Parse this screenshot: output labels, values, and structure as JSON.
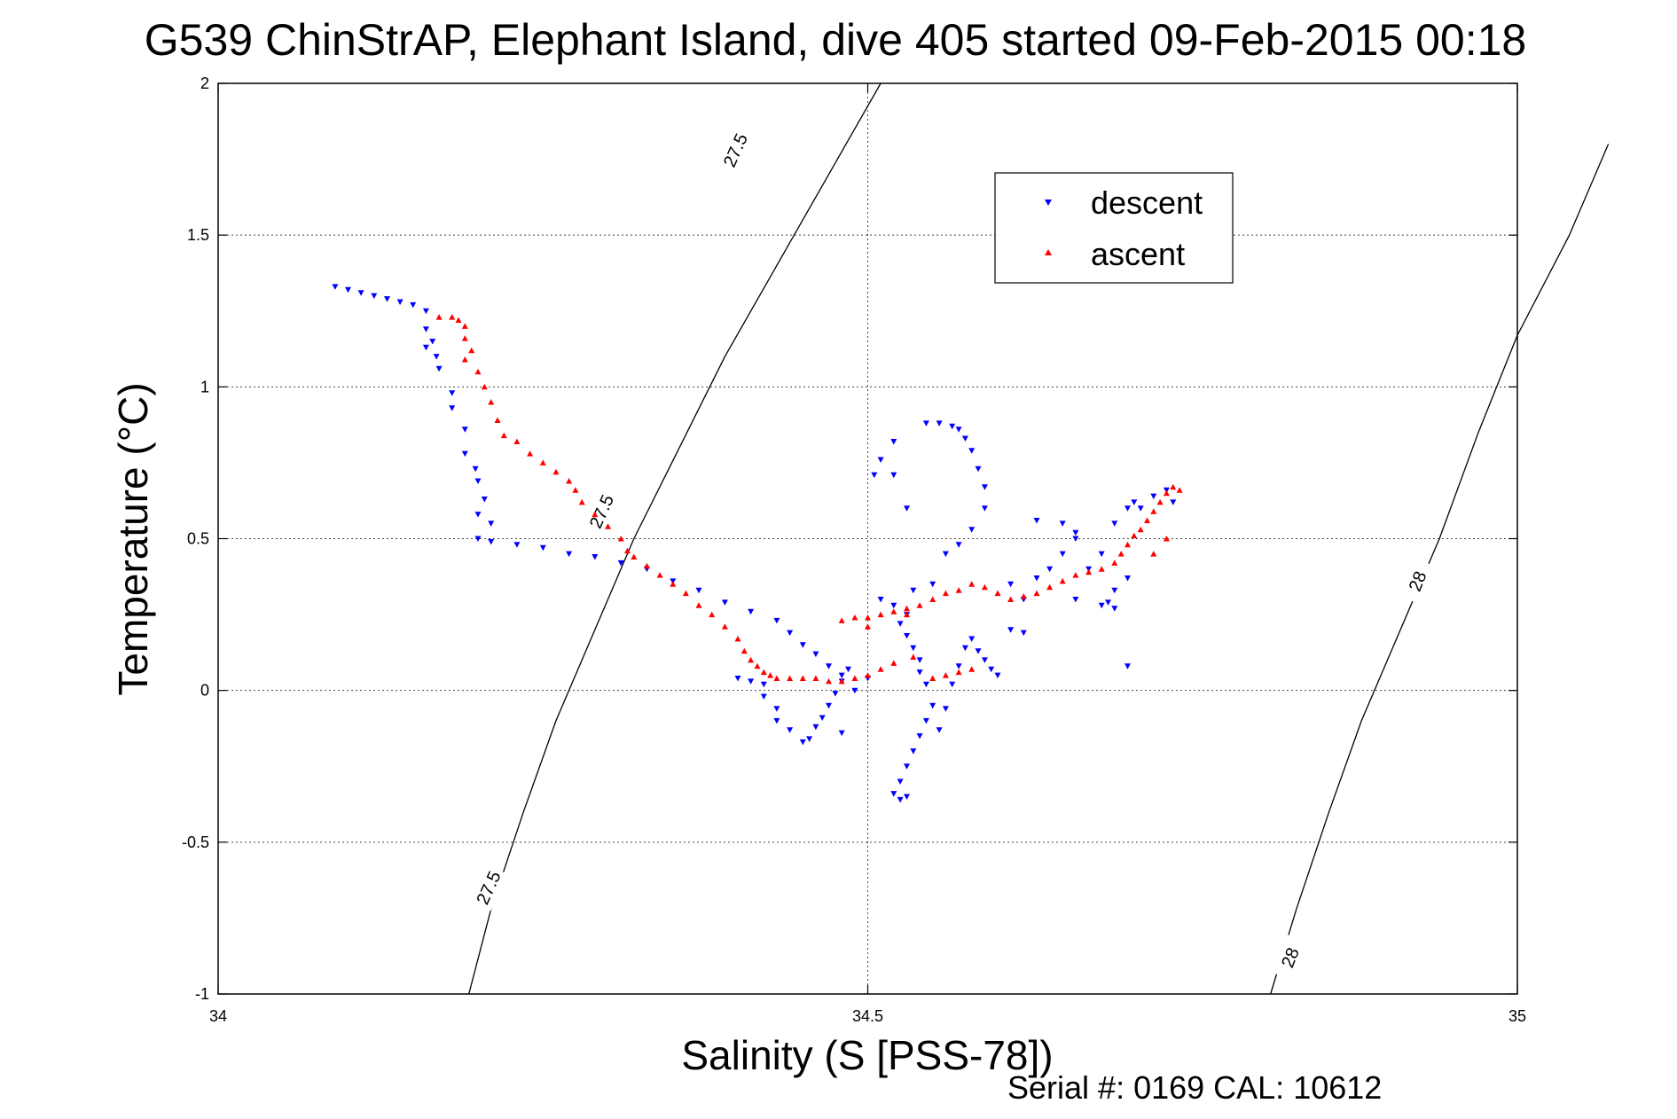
{
  "chart_data": {
    "type": "scatter",
    "title": "G539 ChinStrAP, Elephant Island, dive 405 started 09-Feb-2015 00:18",
    "xlabel": "Salinity (S [PSS-78])",
    "ylabel": "Temperature (°C)",
    "xlim": [
      34,
      35
    ],
    "ylim": [
      -1,
      2
    ],
    "xticks": [
      "34",
      "34.5",
      "35"
    ],
    "yticks": [
      "-1",
      "-0.5",
      "0",
      "0.5",
      "1",
      "1.5",
      "2"
    ],
    "grid": true,
    "legend_position": "top-right",
    "footer": "Serial #: 0169 CAL: 10612",
    "contours": [
      {
        "label": "27.5",
        "points": [
          [
            34.193,
            -1.0
          ],
          [
            34.21,
            -0.72
          ],
          [
            34.235,
            -0.4
          ],
          [
            34.26,
            -0.1
          ],
          [
            34.29,
            0.2
          ],
          [
            34.32,
            0.5
          ],
          [
            34.355,
            0.8
          ],
          [
            34.39,
            1.1
          ],
          [
            34.43,
            1.4
          ],
          [
            34.47,
            1.7
          ],
          [
            34.51,
            2.0
          ]
        ],
        "label_positions": [
          [
            34.208,
            -0.65
          ],
          [
            34.295,
            0.59
          ],
          [
            34.398,
            1.78
          ]
        ]
      },
      {
        "label": "28",
        "points": [
          [
            34.81,
            -1.0
          ],
          [
            34.83,
            -0.72
          ],
          [
            34.855,
            -0.4
          ],
          [
            34.88,
            -0.1
          ],
          [
            34.91,
            0.2
          ],
          [
            34.94,
            0.5
          ],
          [
            34.97,
            0.85
          ],
          [
            35.0,
            1.17
          ],
          [
            35.04,
            1.5
          ],
          [
            35.07,
            1.8
          ]
        ],
        "label_positions": [
          [
            34.825,
            -0.88
          ],
          [
            34.923,
            0.36
          ]
        ]
      }
    ],
    "series": [
      {
        "name": "descent",
        "color": "#0000ff",
        "marker": "triangle-down",
        "points": [
          [
            34.09,
            1.33
          ],
          [
            34.1,
            1.32
          ],
          [
            34.11,
            1.31
          ],
          [
            34.12,
            1.3
          ],
          [
            34.13,
            1.29
          ],
          [
            34.14,
            1.28
          ],
          [
            34.15,
            1.27
          ],
          [
            34.16,
            1.25
          ],
          [
            34.16,
            1.19
          ],
          [
            34.165,
            1.15
          ],
          [
            34.16,
            1.13
          ],
          [
            34.168,
            1.1
          ],
          [
            34.17,
            1.06
          ],
          [
            34.18,
            0.98
          ],
          [
            34.18,
            0.93
          ],
          [
            34.19,
            0.86
          ],
          [
            34.19,
            0.78
          ],
          [
            34.198,
            0.73
          ],
          [
            34.2,
            0.69
          ],
          [
            34.205,
            0.63
          ],
          [
            34.2,
            0.58
          ],
          [
            34.21,
            0.55
          ],
          [
            34.2,
            0.5
          ],
          [
            34.21,
            0.49
          ],
          [
            34.23,
            0.48
          ],
          [
            34.25,
            0.47
          ],
          [
            34.27,
            0.45
          ],
          [
            34.29,
            0.44
          ],
          [
            34.31,
            0.42
          ],
          [
            34.33,
            0.4
          ],
          [
            34.35,
            0.36
          ],
          [
            34.37,
            0.33
          ],
          [
            34.39,
            0.29
          ],
          [
            34.41,
            0.26
          ],
          [
            34.43,
            0.23
          ],
          [
            34.44,
            0.19
          ],
          [
            34.45,
            0.15
          ],
          [
            34.46,
            0.12
          ],
          [
            34.47,
            0.08
          ],
          [
            34.48,
            0.05
          ],
          [
            34.4,
            0.04
          ],
          [
            34.41,
            0.03
          ],
          [
            34.42,
            0.02
          ],
          [
            34.42,
            -0.02
          ],
          [
            34.43,
            -0.06
          ],
          [
            34.43,
            -0.1
          ],
          [
            34.44,
            -0.13
          ],
          [
            34.45,
            -0.17
          ],
          [
            34.455,
            -0.16
          ],
          [
            34.46,
            -0.12
          ],
          [
            34.465,
            -0.09
          ],
          [
            34.47,
            -0.05
          ],
          [
            34.475,
            -0.01
          ],
          [
            34.48,
            0.03
          ],
          [
            34.485,
            0.07
          ],
          [
            34.48,
            -0.14
          ],
          [
            34.49,
            0.0
          ],
          [
            34.5,
            0.04
          ],
          [
            34.51,
            0.3
          ],
          [
            34.52,
            0.28
          ],
          [
            34.53,
            0.25
          ],
          [
            34.525,
            0.22
          ],
          [
            34.53,
            0.18
          ],
          [
            34.535,
            0.14
          ],
          [
            34.54,
            0.1
          ],
          [
            34.54,
            0.06
          ],
          [
            34.545,
            0.02
          ],
          [
            34.55,
            -0.05
          ],
          [
            34.545,
            -0.1
          ],
          [
            34.54,
            -0.15
          ],
          [
            34.535,
            -0.2
          ],
          [
            34.53,
            -0.25
          ],
          [
            34.525,
            -0.3
          ],
          [
            34.52,
            -0.34
          ],
          [
            34.525,
            -0.36
          ],
          [
            34.53,
            -0.35
          ],
          [
            34.555,
            -0.13
          ],
          [
            34.56,
            -0.06
          ],
          [
            34.565,
            0.02
          ],
          [
            34.57,
            0.08
          ],
          [
            34.575,
            0.14
          ],
          [
            34.58,
            0.17
          ],
          [
            34.585,
            0.13
          ],
          [
            34.59,
            0.1
          ],
          [
            34.595,
            0.07
          ],
          [
            34.6,
            0.05
          ],
          [
            34.61,
            0.2
          ],
          [
            34.62,
            0.3
          ],
          [
            34.63,
            0.37
          ],
          [
            34.64,
            0.4
          ],
          [
            34.65,
            0.45
          ],
          [
            34.66,
            0.52
          ],
          [
            34.66,
            0.3
          ],
          [
            34.67,
            0.4
          ],
          [
            34.68,
            0.45
          ],
          [
            34.69,
            0.55
          ],
          [
            34.69,
            0.33
          ],
          [
            34.7,
            0.6
          ],
          [
            34.705,
            0.62
          ],
          [
            34.71,
            0.6
          ],
          [
            34.72,
            0.64
          ],
          [
            34.73,
            0.66
          ],
          [
            34.735,
            0.62
          ],
          [
            34.7,
            0.37
          ],
          [
            34.69,
            0.27
          ],
          [
            34.685,
            0.29
          ],
          [
            34.68,
            0.28
          ],
          [
            34.66,
            0.5
          ],
          [
            34.65,
            0.55
          ],
          [
            34.63,
            0.56
          ],
          [
            34.61,
            0.35
          ],
          [
            34.55,
            0.35
          ],
          [
            34.535,
            0.33
          ],
          [
            34.545,
            0.88
          ],
          [
            34.555,
            0.88
          ],
          [
            34.565,
            0.87
          ],
          [
            34.57,
            0.86
          ],
          [
            34.575,
            0.83
          ],
          [
            34.58,
            0.79
          ],
          [
            34.585,
            0.73
          ],
          [
            34.59,
            0.67
          ],
          [
            34.59,
            0.6
          ],
          [
            34.58,
            0.53
          ],
          [
            34.57,
            0.48
          ],
          [
            34.56,
            0.45
          ],
          [
            34.52,
            0.82
          ],
          [
            34.51,
            0.76
          ],
          [
            34.505,
            0.71
          ],
          [
            34.52,
            0.71
          ],
          [
            34.53,
            0.6
          ],
          [
            34.62,
            0.19
          ],
          [
            34.7,
            0.08
          ]
        ]
      },
      {
        "name": "ascent",
        "color": "#ff0000",
        "marker": "triangle-up",
        "points": [
          [
            34.17,
            1.23
          ],
          [
            34.18,
            1.23
          ],
          [
            34.185,
            1.22
          ],
          [
            34.19,
            1.2
          ],
          [
            34.19,
            1.16
          ],
          [
            34.195,
            1.12
          ],
          [
            34.19,
            1.09
          ],
          [
            34.2,
            1.05
          ],
          [
            34.205,
            1.0
          ],
          [
            34.21,
            0.95
          ],
          [
            34.215,
            0.89
          ],
          [
            34.22,
            0.84
          ],
          [
            34.23,
            0.82
          ],
          [
            34.24,
            0.78
          ],
          [
            34.25,
            0.75
          ],
          [
            34.26,
            0.72
          ],
          [
            34.27,
            0.69
          ],
          [
            34.275,
            0.66
          ],
          [
            34.28,
            0.62
          ],
          [
            34.29,
            0.58
          ],
          [
            34.3,
            0.54
          ],
          [
            34.31,
            0.5
          ],
          [
            34.315,
            0.46
          ],
          [
            34.32,
            0.44
          ],
          [
            34.33,
            0.41
          ],
          [
            34.34,
            0.38
          ],
          [
            34.35,
            0.35
          ],
          [
            34.36,
            0.32
          ],
          [
            34.37,
            0.28
          ],
          [
            34.38,
            0.25
          ],
          [
            34.39,
            0.21
          ],
          [
            34.4,
            0.17
          ],
          [
            34.405,
            0.13
          ],
          [
            34.41,
            0.1
          ],
          [
            34.415,
            0.08
          ],
          [
            34.42,
            0.06
          ],
          [
            34.425,
            0.05
          ],
          [
            34.43,
            0.04
          ],
          [
            34.44,
            0.04
          ],
          [
            34.45,
            0.04
          ],
          [
            34.46,
            0.04
          ],
          [
            34.47,
            0.03
          ],
          [
            34.48,
            0.03
          ],
          [
            34.49,
            0.04
          ],
          [
            34.5,
            0.05
          ],
          [
            34.51,
            0.07
          ],
          [
            34.52,
            0.09
          ],
          [
            34.535,
            0.11
          ],
          [
            34.55,
            0.04
          ],
          [
            34.56,
            0.05
          ],
          [
            34.57,
            0.06
          ],
          [
            34.58,
            0.07
          ],
          [
            34.48,
            0.23
          ],
          [
            34.49,
            0.24
          ],
          [
            34.5,
            0.24
          ],
          [
            34.51,
            0.25
          ],
          [
            34.52,
            0.26
          ],
          [
            34.53,
            0.27
          ],
          [
            34.54,
            0.28
          ],
          [
            34.55,
            0.3
          ],
          [
            34.56,
            0.32
          ],
          [
            34.57,
            0.33
          ],
          [
            34.58,
            0.35
          ],
          [
            34.59,
            0.34
          ],
          [
            34.6,
            0.32
          ],
          [
            34.61,
            0.3
          ],
          [
            34.62,
            0.31
          ],
          [
            34.63,
            0.32
          ],
          [
            34.64,
            0.34
          ],
          [
            34.65,
            0.36
          ],
          [
            34.66,
            0.38
          ],
          [
            34.67,
            0.39
          ],
          [
            34.68,
            0.4
          ],
          [
            34.69,
            0.42
          ],
          [
            34.695,
            0.45
          ],
          [
            34.7,
            0.48
          ],
          [
            34.705,
            0.51
          ],
          [
            34.71,
            0.53
          ],
          [
            34.715,
            0.56
          ],
          [
            34.72,
            0.59
          ],
          [
            34.725,
            0.62
          ],
          [
            34.73,
            0.65
          ],
          [
            34.735,
            0.67
          ],
          [
            34.74,
            0.66
          ],
          [
            34.73,
            0.5
          ],
          [
            34.72,
            0.45
          ],
          [
            34.53,
            0.25
          ],
          [
            34.5,
            0.21
          ]
        ]
      }
    ]
  }
}
